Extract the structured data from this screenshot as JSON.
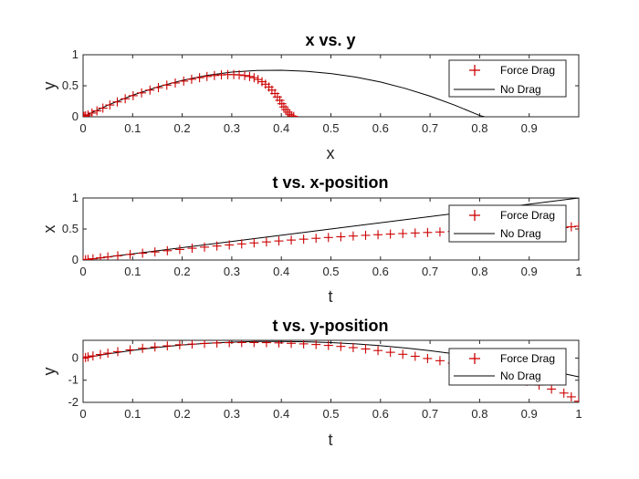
{
  "colors": {
    "drag": "#cc0000",
    "nodrag": "#000000",
    "axis": "#262626"
  },
  "chart_data": [
    {
      "type": "line",
      "title": "x vs. y",
      "xlabel": "x",
      "ylabel": "y",
      "xlim": [
        0,
        1
      ],
      "ylim": [
        0,
        1
      ],
      "xticks": [
        "0",
        "0.1",
        "0.2",
        "0.3",
        "0.4",
        "0.5",
        "0.6",
        "0.7",
        "0.8",
        "0.9"
      ],
      "yticks": [
        "0",
        "0.5",
        "1"
      ],
      "legend": {
        "position": "top-right",
        "entries": [
          "Force Drag",
          "No Drag"
        ]
      },
      "series": [
        {
          "name": "Force Drag",
          "marker": "+",
          "x": [
            0,
            0.002,
            0.005,
            0.01,
            0.018,
            0.028,
            0.04,
            0.054,
            0.069,
            0.085,
            0.101,
            0.118,
            0.135,
            0.152,
            0.169,
            0.186,
            0.203,
            0.219,
            0.235,
            0.25,
            0.265,
            0.279,
            0.292,
            0.304,
            0.315,
            0.326,
            0.336,
            0.345,
            0.353,
            0.361,
            0.368,
            0.375,
            0.381,
            0.387,
            0.392,
            0.397,
            0.401,
            0.405,
            0.409,
            0.413,
            0.417,
            0.421,
            0.425
          ],
          "y": [
            0,
            0.006,
            0.015,
            0.03,
            0.06,
            0.095,
            0.14,
            0.19,
            0.24,
            0.29,
            0.34,
            0.385,
            0.43,
            0.47,
            0.51,
            0.545,
            0.575,
            0.605,
            0.63,
            0.65,
            0.665,
            0.675,
            0.68,
            0.68,
            0.675,
            0.665,
            0.65,
            0.63,
            0.6,
            0.565,
            0.525,
            0.48,
            0.43,
            0.375,
            0.32,
            0.265,
            0.21,
            0.16,
            0.115,
            0.075,
            0.04,
            0.015,
            0.005
          ]
        },
        {
          "name": "No Drag",
          "x": [
            0,
            0.05,
            0.1,
            0.15,
            0.2,
            0.25,
            0.3,
            0.35,
            0.4,
            0.45,
            0.5,
            0.55,
            0.6,
            0.65,
            0.7,
            0.75,
            0.8,
            0.81
          ],
          "y": [
            0,
            0.187,
            0.347,
            0.48,
            0.587,
            0.667,
            0.72,
            0.747,
            0.75,
            0.733,
            0.697,
            0.64,
            0.56,
            0.457,
            0.333,
            0.187,
            0.021,
            0
          ]
        }
      ]
    },
    {
      "type": "line",
      "title": "t vs. x-position",
      "xlabel": "t",
      "ylabel": "x",
      "xlim": [
        0,
        1
      ],
      "ylim": [
        0,
        1
      ],
      "xticks": [
        "0",
        "0.1",
        "0.2",
        "0.3",
        "0.4",
        "0.5",
        "0.6",
        "0.7",
        "0.8",
        "0.9",
        "1"
      ],
      "yticks": [
        "0",
        "0.5",
        "1"
      ],
      "legend": {
        "position": "top-right",
        "entries": [
          "Force Drag",
          "No Drag"
        ]
      },
      "series": [
        {
          "name": "Force Drag",
          "marker": "+",
          "x": [
            0,
            0.005,
            0.01,
            0.02,
            0.035,
            0.05,
            0.07,
            0.095,
            0.12,
            0.145,
            0.17,
            0.195,
            0.22,
            0.245,
            0.27,
            0.295,
            0.32,
            0.345,
            0.37,
            0.395,
            0.42,
            0.445,
            0.47,
            0.495,
            0.52,
            0.545,
            0.57,
            0.595,
            0.62,
            0.645,
            0.67,
            0.695,
            0.72,
            0.745,
            0.77,
            0.795,
            0.82,
            0.845,
            0.87,
            0.895,
            0.92,
            0.945,
            0.97,
            0.985,
            1
          ],
          "y": [
            0,
            0.005,
            0.01,
            0.02,
            0.035,
            0.05,
            0.068,
            0.09,
            0.11,
            0.13,
            0.15,
            0.17,
            0.19,
            0.208,
            0.226,
            0.243,
            0.26,
            0.276,
            0.292,
            0.307,
            0.322,
            0.336,
            0.35,
            0.363,
            0.375,
            0.387,
            0.398,
            0.408,
            0.418,
            0.427,
            0.436,
            0.444,
            0.452,
            0.46,
            0.467,
            0.474,
            0.481,
            0.488,
            0.495,
            0.502,
            0.509,
            0.516,
            0.523,
            0.535,
            0.545
          ]
        },
        {
          "name": "No Drag",
          "x": [
            0,
            1
          ],
          "y": [
            0,
            1
          ]
        }
      ]
    },
    {
      "type": "line",
      "title": "t vs. y-position",
      "xlabel": "t",
      "ylabel": "y",
      "xlim": [
        0,
        1
      ],
      "ylim": [
        -2,
        0.8
      ],
      "xticks": [
        "0",
        "0.1",
        "0.2",
        "0.3",
        "0.4",
        "0.5",
        "0.6",
        "0.7",
        "0.8",
        "0.9",
        "1"
      ],
      "yticks": [
        "-2",
        "-1",
        "0"
      ],
      "legend": {
        "position": "top-right",
        "entries": [
          "Force Drag",
          "No Drag"
        ]
      },
      "series": [
        {
          "name": "Force Drag",
          "marker": "+",
          "x": [
            0,
            0.005,
            0.01,
            0.02,
            0.035,
            0.05,
            0.07,
            0.095,
            0.12,
            0.145,
            0.17,
            0.195,
            0.22,
            0.245,
            0.27,
            0.295,
            0.32,
            0.345,
            0.37,
            0.395,
            0.42,
            0.445,
            0.47,
            0.495,
            0.52,
            0.545,
            0.57,
            0.595,
            0.62,
            0.645,
            0.67,
            0.695,
            0.72,
            0.745,
            0.77,
            0.795,
            0.82,
            0.845,
            0.87,
            0.895,
            0.92,
            0.945,
            0.97,
            0.985,
            1
          ],
          "y": [
            0,
            0.025,
            0.05,
            0.095,
            0.16,
            0.22,
            0.29,
            0.37,
            0.44,
            0.5,
            0.55,
            0.6,
            0.63,
            0.66,
            0.68,
            0.695,
            0.7,
            0.7,
            0.695,
            0.685,
            0.665,
            0.64,
            0.61,
            0.57,
            0.525,
            0.47,
            0.41,
            0.34,
            0.26,
            0.17,
            0.08,
            -0.02,
            -0.12,
            -0.23,
            -0.35,
            -0.47,
            -0.6,
            -0.74,
            -0.89,
            -1.05,
            -1.22,
            -1.4,
            -1.58,
            -1.75,
            -1.95
          ]
        },
        {
          "name": "No Drag",
          "x": [
            0,
            0.05,
            0.1,
            0.15,
            0.2,
            0.25,
            0.3,
            0.35,
            0.4,
            0.45,
            0.5,
            0.55,
            0.6,
            0.65,
            0.7,
            0.75,
            0.8,
            0.85,
            0.9,
            0.95,
            1
          ],
          "y": [
            0,
            0.187,
            0.347,
            0.48,
            0.587,
            0.667,
            0.72,
            0.747,
            0.75,
            0.733,
            0.697,
            0.64,
            0.56,
            0.457,
            0.333,
            0.187,
            0.02,
            -0.17,
            -0.38,
            -0.61,
            -0.85
          ]
        }
      ]
    }
  ]
}
